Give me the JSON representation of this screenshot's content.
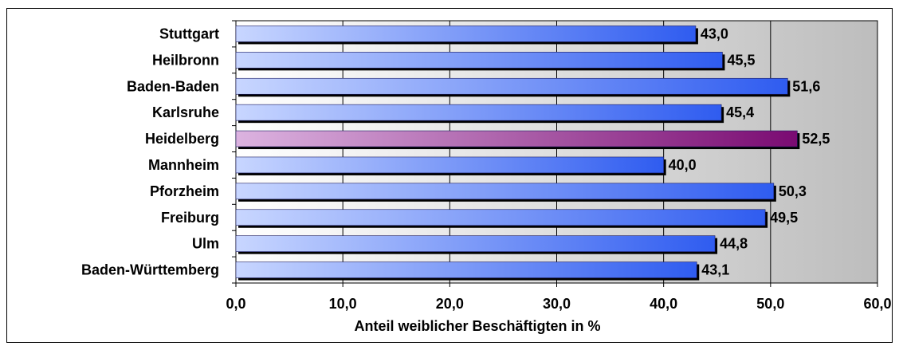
{
  "chart_data": {
    "type": "bar",
    "orientation": "horizontal",
    "title": "",
    "xlabel": "Anteil weiblicher Beschäftigten in %",
    "ylabel": "",
    "xlim": [
      0,
      60
    ],
    "x_ticks": [
      "0,0",
      "10,0",
      "20,0",
      "30,0",
      "40,0",
      "50,0",
      "60,0"
    ],
    "categories": [
      "Stuttgart",
      "Heilbronn",
      "Baden-Baden",
      "Karlsruhe",
      "Heidelberg",
      "Mannheim",
      "Pforzheim",
      "Freiburg",
      "Ulm",
      "Baden-Württemberg"
    ],
    "values": [
      43.0,
      45.5,
      51.6,
      45.4,
      52.5,
      40.0,
      50.3,
      49.5,
      44.8,
      43.1
    ],
    "value_labels": [
      "43,0",
      "45,5",
      "51,6",
      "45,4",
      "52,5",
      "40,0",
      "50,3",
      "49,5",
      "44,8",
      "43,1"
    ],
    "highlighted_category": "Heidelberg",
    "grid": "vertical",
    "legend": "none",
    "colors": {
      "bar_start": "#c8d6ff",
      "bar_end": "#2f5cf0",
      "highlight_start": "#dcb3e0",
      "highlight_end": "#7a0b72",
      "plot_bg_start": "#ffffff",
      "plot_bg_end": "#bdbdbd"
    }
  }
}
